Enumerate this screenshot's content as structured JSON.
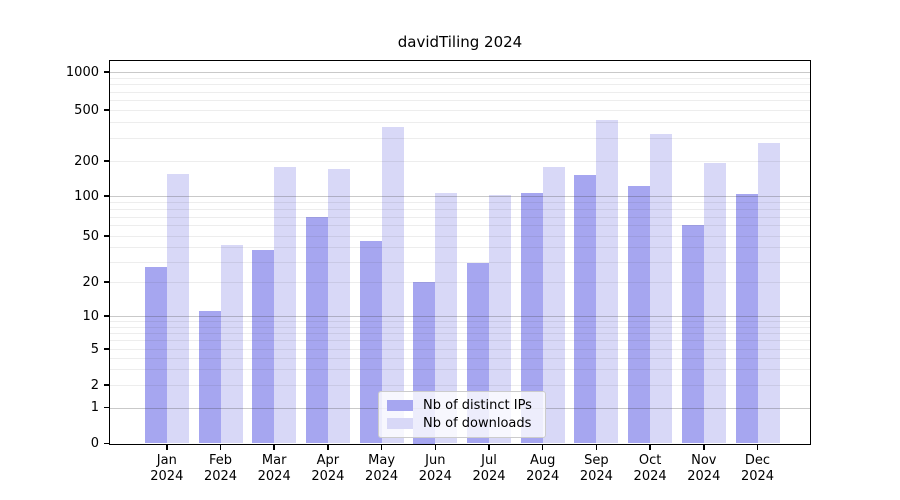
{
  "title": "davidTiling 2024",
  "legend": {
    "items": [
      {
        "label": "Nb of distinct IPs",
        "color": "#a6a6f0"
      },
      {
        "label": "Nb of downloads",
        "color": "#d8d8f7"
      }
    ],
    "position": "lower center"
  },
  "chart_data": {
    "type": "bar",
    "title": "davidTiling 2024",
    "categories": [
      "Jan 2024",
      "Feb 2024",
      "Mar 2024",
      "Apr 2024",
      "May 2024",
      "Jun 2024",
      "Jul 2024",
      "Aug 2024",
      "Sep 2024",
      "Oct 2024",
      "Nov 2024",
      "Dec 2024"
    ],
    "x_tick_line1": [
      "Jan",
      "Feb",
      "Mar",
      "Apr",
      "May",
      "Jun",
      "Jul",
      "Aug",
      "Sep",
      "Oct",
      "Nov",
      "Dec"
    ],
    "x_tick_line2": [
      "2024",
      "2024",
      "2024",
      "2024",
      "2024",
      "2024",
      "2024",
      "2024",
      "2024",
      "2024",
      "2024",
      "2024"
    ],
    "series": [
      {
        "name": "Nb of distinct IPs",
        "color": "#a6a6f0",
        "values": [
          27,
          11,
          38,
          70,
          45,
          20,
          29,
          106,
          152,
          123,
          60,
          105
        ]
      },
      {
        "name": "Nb of downloads",
        "color": "#d8d8f7",
        "values": [
          155,
          42,
          178,
          170,
          370,
          107,
          102,
          178,
          415,
          322,
          192,
          274
        ]
      }
    ],
    "xlabel": "",
    "ylabel": "",
    "yscale": "symlog",
    "y_ticks": [
      0,
      1,
      2,
      5,
      10,
      20,
      50,
      100,
      200,
      500,
      1000
    ],
    "ylim": [
      0,
      1300
    ],
    "grid": true,
    "legend_position": "lower center",
    "background": "#ffffff"
  }
}
